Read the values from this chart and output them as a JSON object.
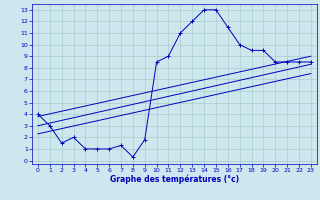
{
  "title": "Graphe des températures (°c)",
  "bg_color": "#cce8ee",
  "grid_color": "#aacccc",
  "line_color": "#0000bb",
  "xlim": [
    -0.5,
    23.5
  ],
  "ylim": [
    -0.3,
    13.5
  ],
  "xticks": [
    0,
    1,
    2,
    3,
    4,
    5,
    6,
    7,
    8,
    9,
    10,
    11,
    12,
    13,
    14,
    15,
    16,
    17,
    18,
    19,
    20,
    21,
    22,
    23
  ],
  "yticks": [
    0,
    1,
    2,
    3,
    4,
    5,
    6,
    7,
    8,
    9,
    10,
    11,
    12,
    13
  ],
  "main_line": {
    "x": [
      0,
      1,
      2,
      3,
      4,
      5,
      6,
      7,
      8,
      9,
      10,
      11,
      12,
      13,
      14,
      15,
      16,
      17,
      18,
      19,
      20,
      21,
      22,
      23
    ],
    "y": [
      4.0,
      3.0,
      1.5,
      2.0,
      1.0,
      1.0,
      1.0,
      1.3,
      0.3,
      1.8,
      8.5,
      9.0,
      11.0,
      12.0,
      13.0,
      13.0,
      11.5,
      10.0,
      9.5,
      9.5,
      8.5,
      8.5,
      8.5,
      8.5
    ]
  },
  "reg_lines": [
    {
      "x": [
        0,
        23
      ],
      "y": [
        3.8,
        9.0
      ]
    },
    {
      "x": [
        0,
        23
      ],
      "y": [
        3.0,
        8.3
      ]
    },
    {
      "x": [
        0,
        23
      ],
      "y": [
        2.3,
        7.5
      ]
    }
  ]
}
